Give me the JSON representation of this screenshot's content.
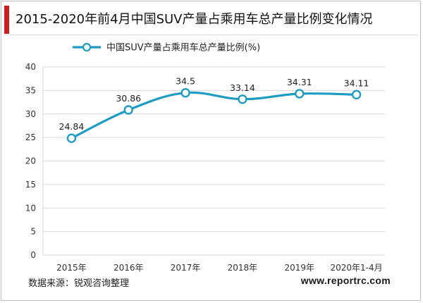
{
  "header": {
    "title": "2015-2020年前4月中国SUV产量占乘用车总产量比例变化情况"
  },
  "chart_data": {
    "type": "line",
    "title": "2015-2020年前4月中国SUV产量占乘用车总产量比例变化情况",
    "xlabel": "",
    "ylabel": "",
    "categories": [
      "2015年",
      "2016年",
      "2017年",
      "2018年",
      "2019年",
      "2020年1-4月"
    ],
    "series": [
      {
        "name": "中国SUV产量占乘用车总产量比例(%)",
        "values": [
          24.84,
          30.86,
          34.5,
          33.14,
          34.31,
          34.11
        ],
        "labels": [
          "24.84",
          "30.86",
          "34.5",
          "33.14",
          "34.31",
          "34.11"
        ]
      }
    ],
    "ylim": [
      0,
      40
    ],
    "yticks": [
      0,
      5,
      10,
      15,
      20,
      25,
      30,
      35,
      40
    ],
    "grid": true,
    "legend_position": "top-left",
    "line_color": "#1f9cc4",
    "grid_color": "#d9d9d9",
    "accent_color": "#cc1f1f"
  },
  "footer": {
    "source": "数据来源：锐观咨询整理",
    "url": "www.reportrc.com"
  }
}
